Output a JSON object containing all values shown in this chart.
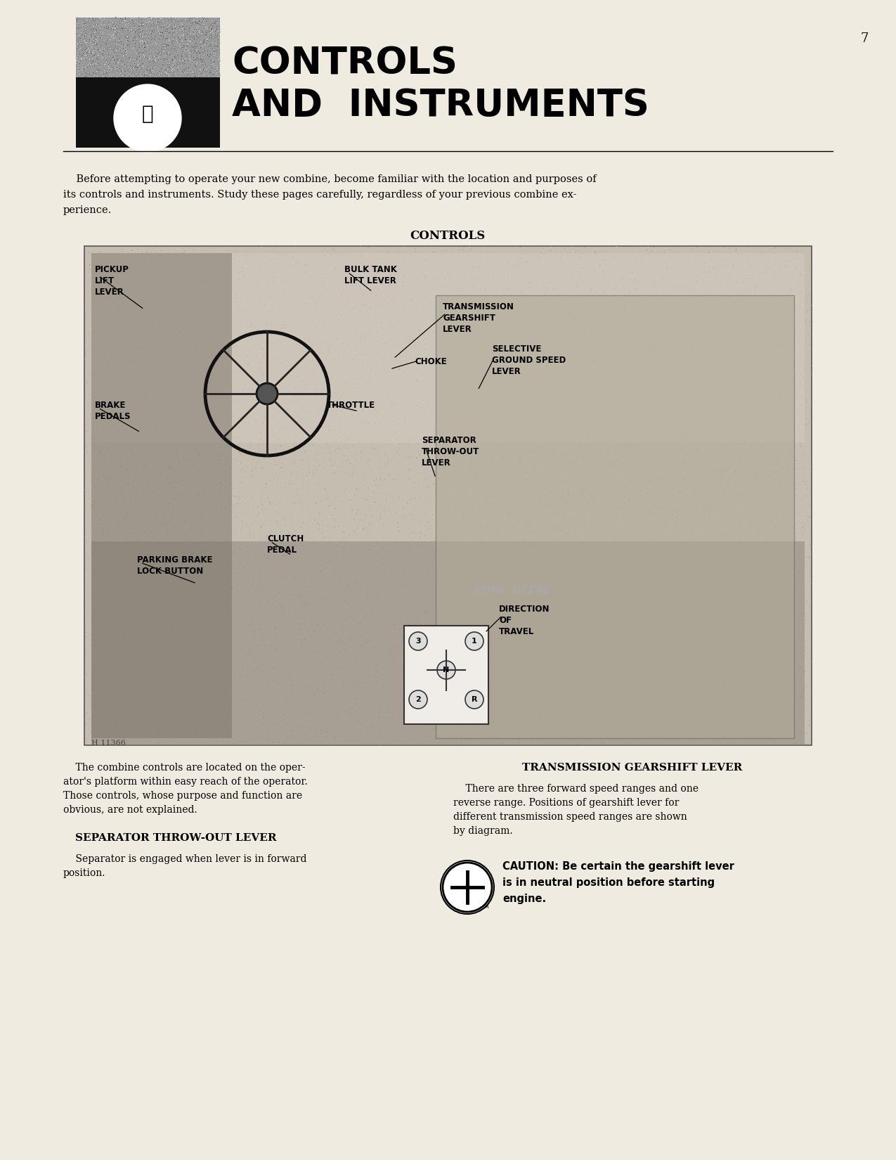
{
  "page_number": "7",
  "background_color": "#f0ebe0",
  "title_line1": "CONTROLS",
  "title_line2": "AND  INSTRUMENTS",
  "title_fontsize": 38,
  "header_bg": "#1a1a1a",
  "intro_text1": "    Before attempting to operate your new combine, become familiar with the location and purposes of",
  "intro_text2": "its controls and instruments. Study these pages carefully, regardless of your previous combine ex-",
  "intro_text3": "perience.",
  "section_label": "CONTROLS",
  "left_col_title": "SEPARATOR THROW-OUT LEVER",
  "left_col_body1": "    The combine controls are located on the oper-",
  "left_col_body2": "ator's platform within easy reach of the operator.",
  "left_col_body3": "Those controls, whose purpose and function are",
  "left_col_body4": "obvious, are not explained.",
  "left_col_sub_title": "SEPARATOR THROW-OUT LEVER",
  "left_col_sub_body1": "    Separator is engaged when lever is in forward",
  "left_col_sub_body2": "position.",
  "right_col_title": "TRANSMISSION GEARSHIFT LEVER",
  "right_col_body1": "    There are three forward speed ranges and one",
  "right_col_body2": "reverse range. Positions of gearshift lever for",
  "right_col_body3": "different transmission speed ranges are shown",
  "right_col_body4": "by diagram.",
  "caution_text1": "CAUTION: Be certain the gearshift lever",
  "caution_text2": "is in neutral position before starting",
  "caution_text3": "engine.",
  "image_note": "H 11366"
}
